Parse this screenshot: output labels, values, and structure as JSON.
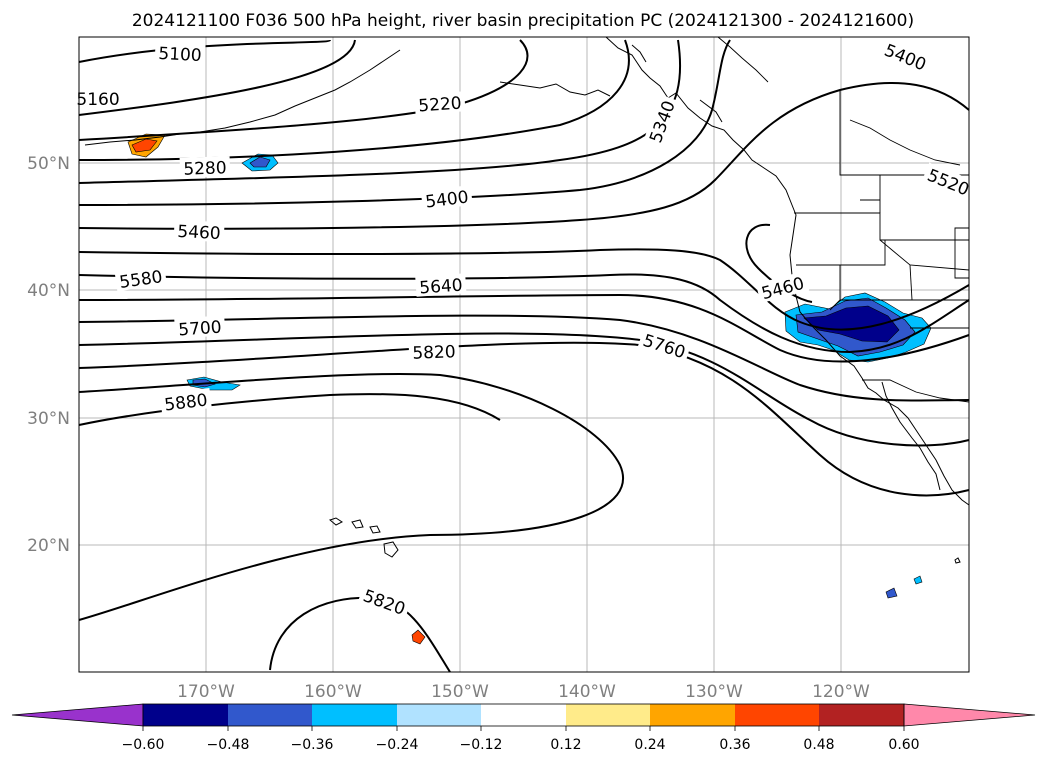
{
  "title": "2024121100 F036 500 hPa height, river basin precipitation PC (2024121300 - 2024121600)",
  "latitude_labels": [
    "50°N",
    "40°N",
    "30°N",
    "20°N"
  ],
  "longitude_labels": [
    "170°W",
    "160°W",
    "150°W",
    "140°W",
    "130°W",
    "120°W"
  ],
  "contour_labels": {
    "c5100": "5100",
    "c5160": "5160",
    "c5220": "5220",
    "c5280": "5280",
    "c5340": "5340",
    "c5400a": "5400",
    "c5400b": "5400",
    "c5460a": "5460",
    "c5460b": "5460",
    "c5520": "5520",
    "c5580": "5580",
    "c5640": "5640",
    "c5700": "5700",
    "c5760": "5760",
    "c5820a": "5820",
    "c5820b": "5820",
    "c5880": "5880"
  },
  "colorbar": {
    "ticks": [
      "−0.60",
      "−0.48",
      "−0.36",
      "−0.24",
      "−0.12",
      "0.12",
      "0.24",
      "0.36",
      "0.48",
      "0.60"
    ],
    "colors": [
      "#9932cc",
      "#00008b",
      "#3158cc",
      "#00bfff",
      "#b0e2ff",
      "#ffffff",
      "#ffeb8a",
      "#ffa500",
      "#ff4500",
      "#b22222",
      "#ff88aa"
    ]
  }
}
